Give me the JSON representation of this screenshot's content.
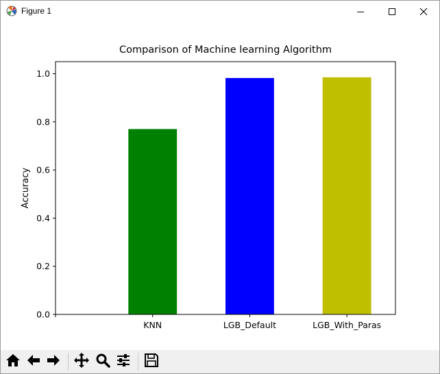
{
  "window": {
    "title": "Figure 1",
    "icons": {
      "app": "matplotlib-logo-icon",
      "minimize": "minimize-icon",
      "maximize": "maximize-icon",
      "close": "close-icon"
    }
  },
  "chart_data": {
    "type": "bar",
    "title": "Comparison of Machine learning Algorithm",
    "xlabel": "",
    "ylabel": "Accuracy",
    "categories": [
      "KNN",
      "LGB_Default",
      "LGB_With_Paras"
    ],
    "values": [
      0.77,
      0.982,
      0.985
    ],
    "colors": [
      "#008000",
      "#0000ff",
      "#bfbf00"
    ],
    "ylim": [
      0,
      1.05
    ],
    "yticks": [
      0.0,
      0.2,
      0.4,
      0.6,
      0.8,
      1.0
    ],
    "ytick_labels": [
      "0.0",
      "0.2",
      "0.4",
      "0.6",
      "0.8",
      "1.0"
    ],
    "xlim": [
      -1,
      2.5
    ],
    "grid": false,
    "legend": "none"
  },
  "toolbar": {
    "buttons": [
      {
        "name": "home-icon"
      },
      {
        "name": "back-icon"
      },
      {
        "name": "forward-icon"
      },
      {
        "name": "pan-icon"
      },
      {
        "name": "zoom-icon"
      },
      {
        "name": "configure-subplots-icon"
      },
      {
        "name": "save-icon"
      }
    ]
  }
}
